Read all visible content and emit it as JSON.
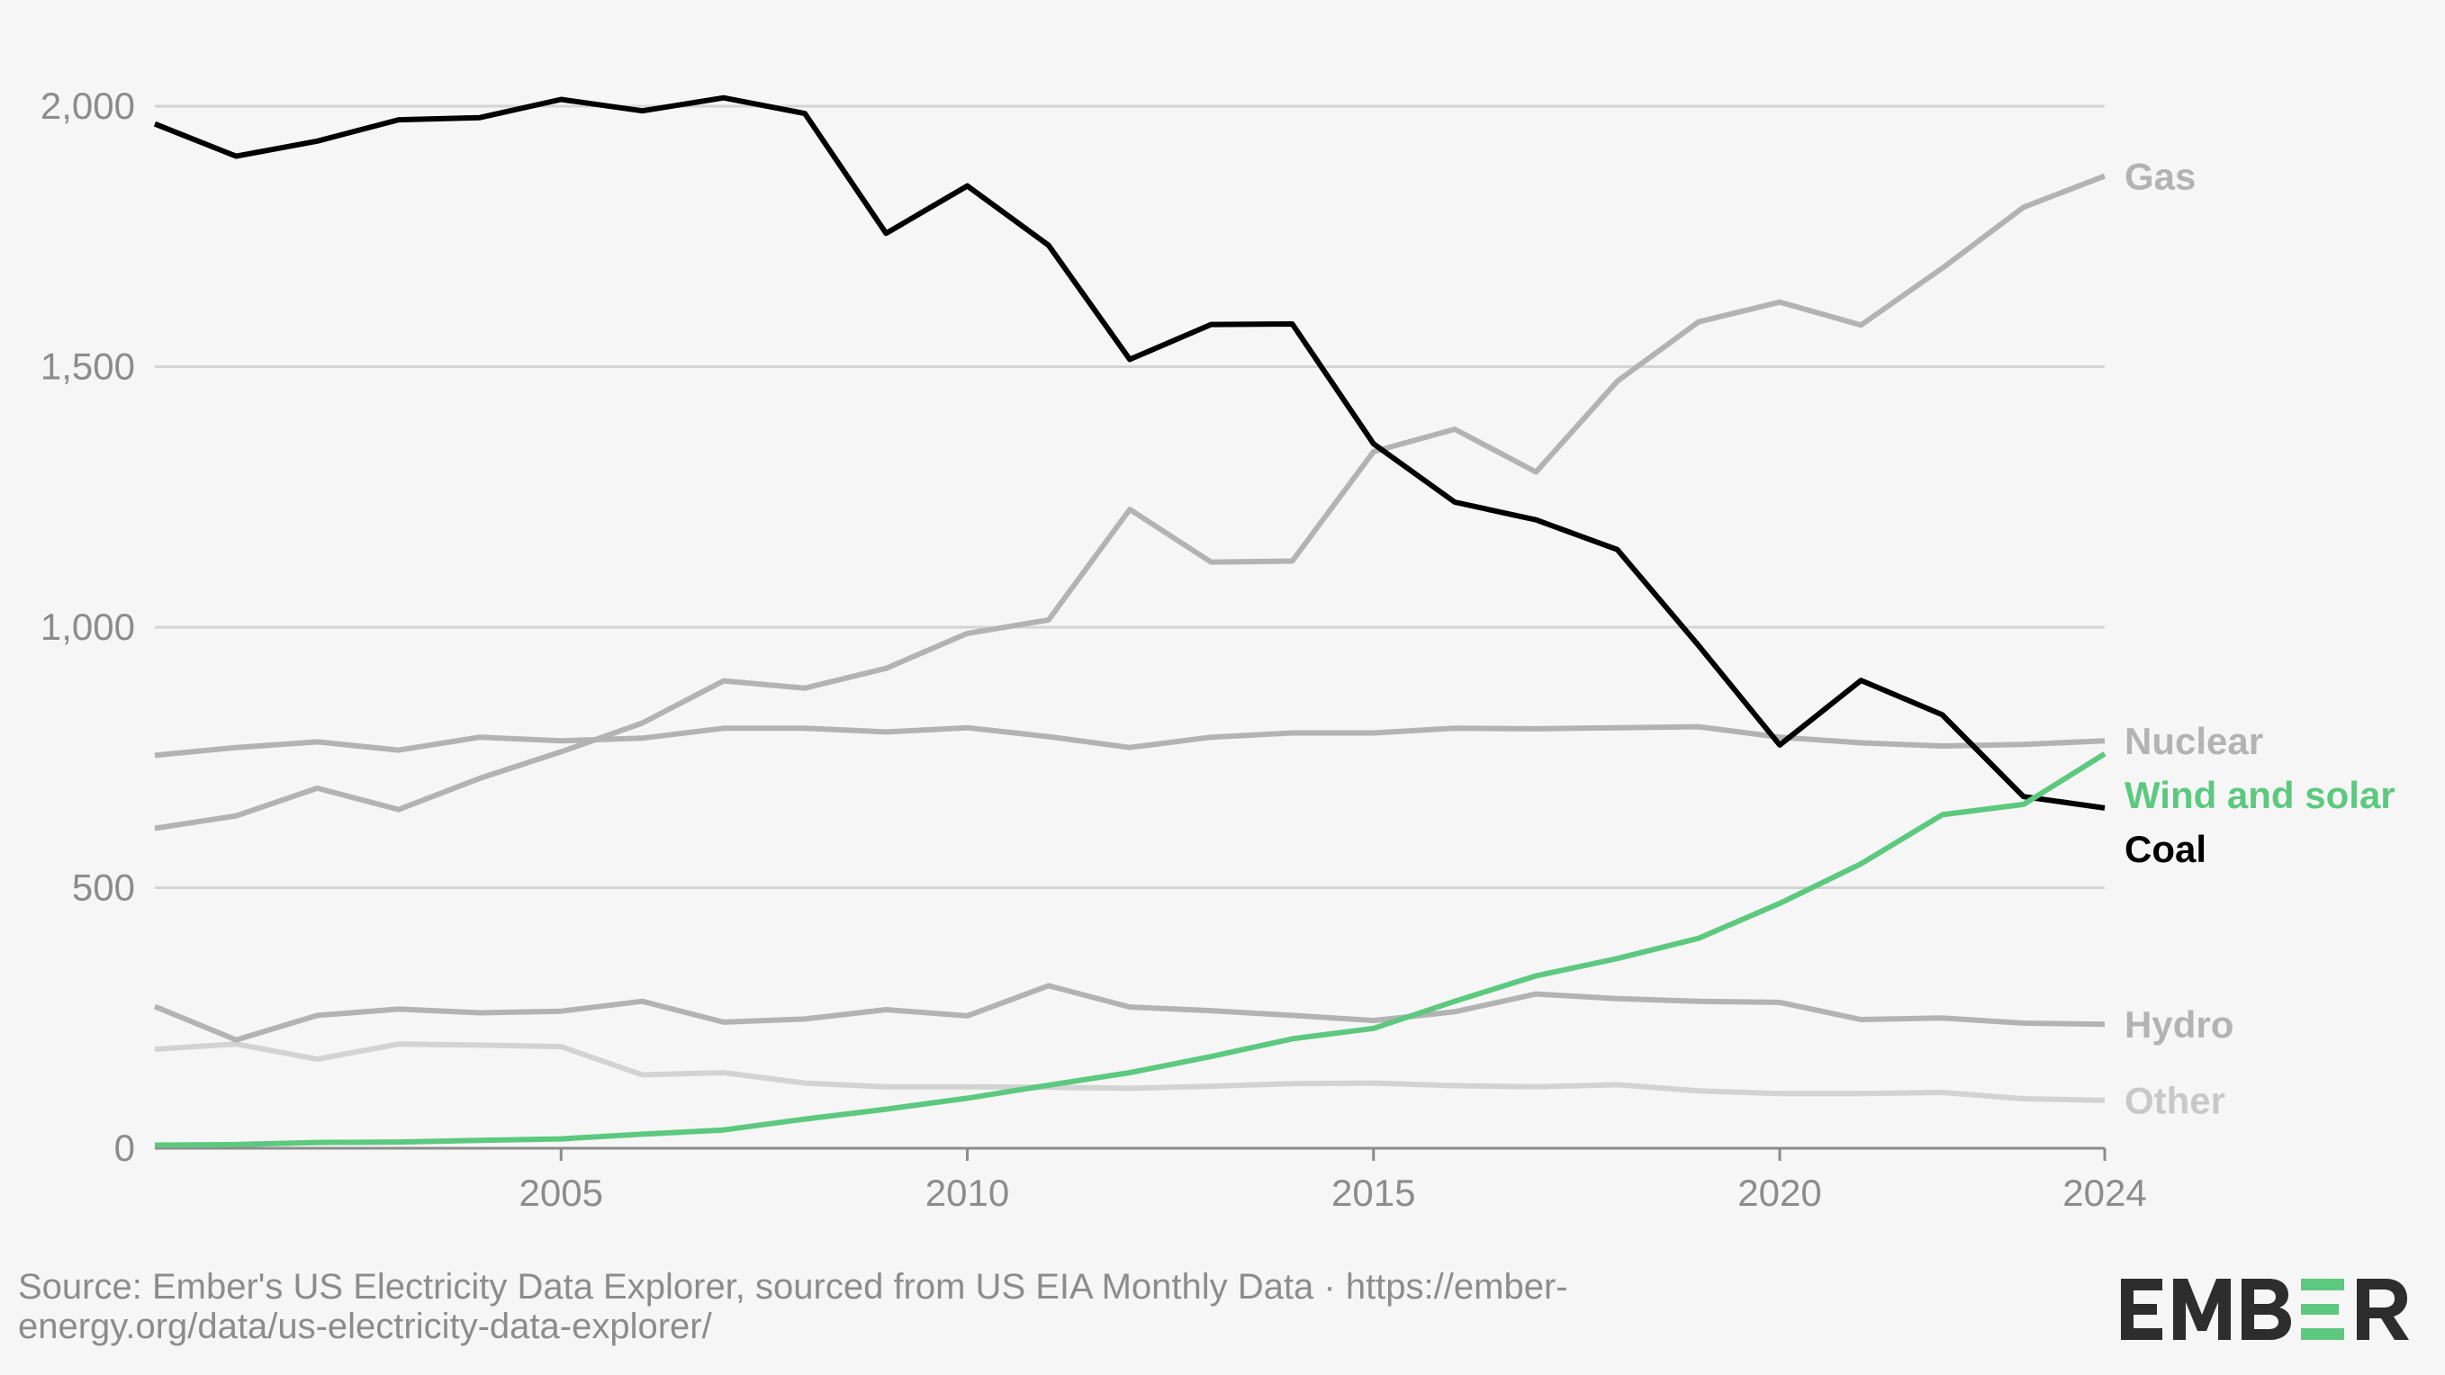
{
  "chart_data": {
    "type": "line",
    "title": "",
    "xlabel": "",
    "ylabel": "",
    "xlim": [
      2000,
      2024
    ],
    "ylim": [
      0,
      2000
    ],
    "grid": true,
    "legend": "inline-right",
    "x": [
      2000,
      2001,
      2002,
      2003,
      2004,
      2005,
      2006,
      2007,
      2008,
      2009,
      2010,
      2011,
      2012,
      2013,
      2014,
      2015,
      2016,
      2017,
      2018,
      2019,
      2020,
      2021,
      2022,
      2023,
      2024
    ],
    "x_ticks": [
      {
        "value": 2005,
        "label": "2005"
      },
      {
        "value": 2010,
        "label": "2010"
      },
      {
        "value": 2015,
        "label": "2015"
      },
      {
        "value": 2020,
        "label": "2020"
      },
      {
        "value": 2024,
        "label": "2024"
      }
    ],
    "y_ticks": [
      {
        "value": 0,
        "label": "0"
      },
      {
        "value": 500,
        "label": "500"
      },
      {
        "value": 1000,
        "label": "1,000"
      },
      {
        "value": 1500,
        "label": "1,500"
      },
      {
        "value": 2000,
        "label": "2,000"
      }
    ],
    "series": [
      {
        "name": "Other",
        "color": "#d3d3d3",
        "label_color": "#c8c8c8",
        "values": [
          190,
          200,
          171,
          200,
          198,
          195,
          141,
          145,
          125,
          118,
          118,
          117,
          115,
          119,
          124,
          125,
          120,
          118,
          122,
          110,
          105,
          105,
          107,
          95,
          92
        ]
      },
      {
        "name": "Hydro",
        "color": "#b3b3b3",
        "label_color": "#b3b3b3",
        "values": [
          272,
          208,
          255,
          267,
          260,
          263,
          282,
          242,
          248,
          266,
          254,
          312,
          271,
          264,
          255,
          245,
          262,
          296,
          287,
          282,
          280,
          247,
          250,
          240,
          238
        ]
      },
      {
        "name": "Nuclear",
        "color": "#b3b3b3",
        "label_color": "#b3b3b3",
        "values": [
          754,
          769,
          780,
          764,
          789,
          782,
          787,
          806,
          806,
          799,
          807,
          790,
          769,
          789,
          797,
          797,
          806,
          805,
          807,
          809,
          789,
          778,
          772,
          775,
          782
        ]
      },
      {
        "name": "Gas",
        "color": "#b3b3b3",
        "label_color": "#b3b3b3",
        "values": [
          614,
          638,
          691,
          650,
          710,
          761,
          816,
          897,
          883,
          921,
          988,
          1014,
          1226,
          1125,
          1127,
          1337,
          1380,
          1298,
          1472,
          1586,
          1624,
          1580,
          1689,
          1806,
          1866
        ]
      },
      {
        "name": "Coal",
        "color": "#000000",
        "label_color": "#000000",
        "values": [
          1966,
          1904,
          1933,
          1974,
          1978,
          2013,
          1991,
          2016,
          1986,
          1756,
          1847,
          1733,
          1514,
          1581,
          1582,
          1352,
          1240,
          1206,
          1149,
          965,
          774,
          898,
          832,
          675,
          653
        ]
      },
      {
        "name": "Wind and solar",
        "color": "#5cc97f",
        "label_color": "#5cc97f",
        "values": [
          6,
          7,
          11,
          12,
          15,
          18,
          27,
          35,
          56,
          75,
          96,
          121,
          145,
          176,
          210,
          230,
          282,
          331,
          364,
          403,
          470,
          546,
          640,
          660,
          757
        ]
      }
    ],
    "series_labels_order": [
      "Gas",
      "Nuclear",
      "Wind and solar",
      "Coal",
      "Hydro",
      "Other"
    ]
  },
  "footer": {
    "source_line_1": "Source: Ember's US Electricity Data Explorer, sourced from US EIA Monthly Data · https://ember-",
    "source_line_2": "energy.org/data/us-electricity-data-explorer/",
    "logo": "EMBER",
    "logo_colors": {
      "dark": "#2d2d2d",
      "accent": "#5cc97f"
    }
  }
}
